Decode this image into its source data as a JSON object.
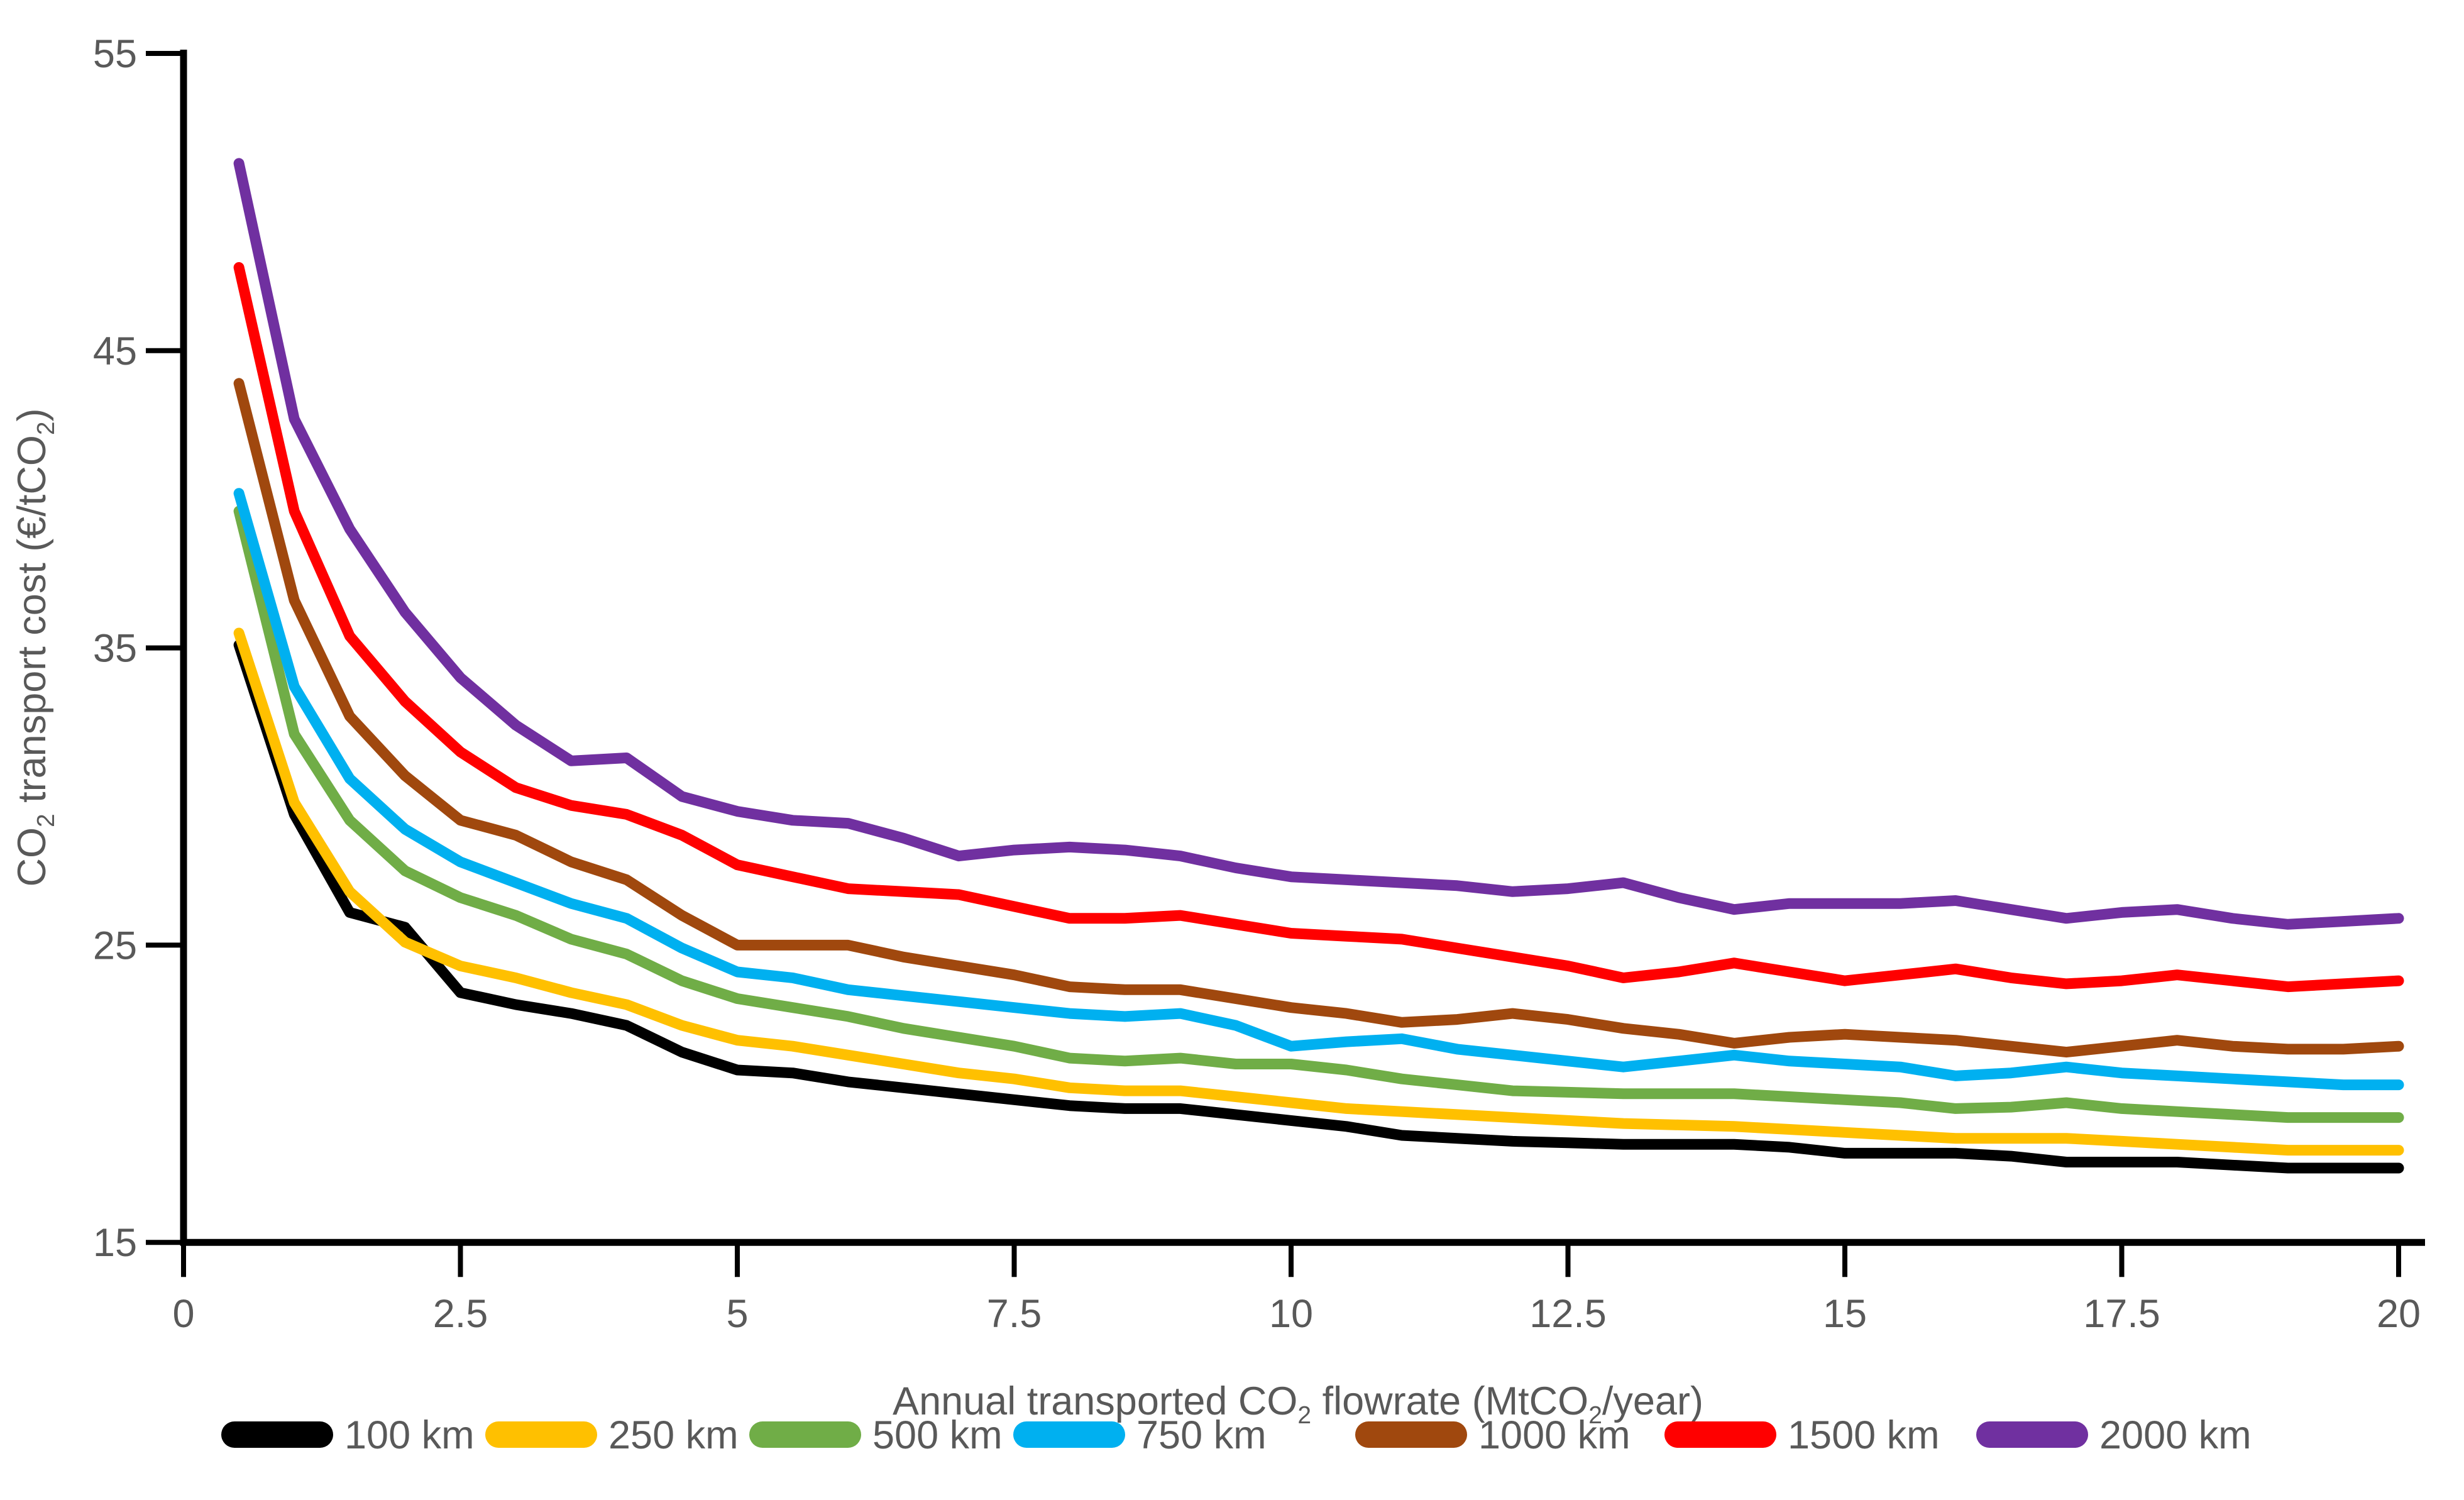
{
  "chart_data": {
    "type": "line",
    "title": "",
    "xlabel": "Annual transported CO₂ flowrate (MtCO₂/year)",
    "ylabel": "CO₂ transport cost (€/tCO₂)",
    "xlim": [
      0,
      20
    ],
    "ylim": [
      15,
      55
    ],
    "grid": false,
    "legend_position": "bottom",
    "x_ticks": [
      0,
      2.5,
      5,
      7.5,
      10,
      12.5,
      15,
      17.5,
      20
    ],
    "x_tick_labels": [
      "0",
      "2.5",
      "5",
      "7.5",
      "10",
      "12.5",
      "15",
      "17.5",
      "20"
    ],
    "y_ticks": [
      15,
      25,
      35,
      45,
      55
    ],
    "y_tick_labels": [
      "15",
      "25",
      "35",
      "45",
      "55"
    ],
    "x": [
      0.5,
      1,
      1.5,
      2,
      2.5,
      3,
      3.5,
      4,
      4.5,
      5,
      5.5,
      6,
      6.5,
      7,
      7.5,
      8,
      8.5,
      9,
      9.5,
      10,
      10.5,
      11,
      11.5,
      12,
      12.5,
      13,
      13.5,
      14,
      14.5,
      15,
      15.5,
      16,
      16.5,
      17,
      17.5,
      18,
      18.5,
      19,
      19.5,
      20
    ],
    "series": [
      {
        "name": "100 km",
        "color": "#000000",
        "values": [
          35.1,
          29.4,
          26.1,
          25.6,
          23.4,
          23.0,
          22.7,
          22.3,
          21.4,
          20.8,
          20.7,
          20.4,
          20.2,
          20.0,
          19.8,
          19.6,
          19.5,
          19.5,
          19.3,
          19.1,
          18.9,
          18.6,
          18.5,
          18.4,
          18.35,
          18.3,
          18.3,
          18.3,
          18.2,
          18.0,
          18.0,
          18.0,
          17.9,
          17.7,
          17.7,
          17.7,
          17.6,
          17.5,
          17.5,
          17.5
        ]
      },
      {
        "name": "250 km",
        "color": "#FFC000",
        "values": [
          35.5,
          29.8,
          26.8,
          25.1,
          24.3,
          23.9,
          23.4,
          23.0,
          22.3,
          21.8,
          21.6,
          21.3,
          21.0,
          20.7,
          20.5,
          20.2,
          20.1,
          20.1,
          19.9,
          19.7,
          19.5,
          19.4,
          19.3,
          19.2,
          19.1,
          19.0,
          18.95,
          18.9,
          18.8,
          18.7,
          18.6,
          18.5,
          18.5,
          18.5,
          18.4,
          18.3,
          18.2,
          18.1,
          18.1,
          18.1
        ]
      },
      {
        "name": "500 km",
        "color": "#70AD47",
        "values": [
          39.6,
          32.1,
          29.2,
          27.5,
          26.6,
          26.0,
          25.2,
          24.7,
          23.8,
          23.2,
          22.9,
          22.6,
          22.2,
          21.9,
          21.6,
          21.2,
          21.1,
          21.2,
          21.0,
          21.0,
          20.8,
          20.5,
          20.3,
          20.1,
          20.05,
          20.0,
          20.0,
          20.0,
          19.9,
          19.8,
          19.7,
          19.5,
          19.55,
          19.7,
          19.5,
          19.4,
          19.3,
          19.2,
          19.2,
          19.2
        ]
      },
      {
        "name": "750 km",
        "color": "#00B0F0",
        "values": [
          40.2,
          33.7,
          30.6,
          28.9,
          27.8,
          27.1,
          26.4,
          25.9,
          24.9,
          24.1,
          23.9,
          23.5,
          23.3,
          23.1,
          22.9,
          22.7,
          22.6,
          22.7,
          22.3,
          21.6,
          21.75,
          21.85,
          21.5,
          21.3,
          21.1,
          20.9,
          21.1,
          21.3,
          21.1,
          21.0,
          20.9,
          20.6,
          20.7,
          20.9,
          20.7,
          20.6,
          20.5,
          20.4,
          20.3,
          20.3
        ]
      },
      {
        "name": "1000 km",
        "color": "#A0480E",
        "values": [
          43.9,
          36.6,
          32.7,
          30.7,
          29.2,
          28.7,
          27.8,
          27.2,
          26.0,
          25.0,
          25.0,
          25.0,
          24.6,
          24.3,
          24.0,
          23.6,
          23.5,
          23.5,
          23.2,
          22.9,
          22.7,
          22.4,
          22.5,
          22.7,
          22.5,
          22.2,
          22.0,
          21.7,
          21.9,
          22.0,
          21.9,
          21.8,
          21.6,
          21.4,
          21.6,
          21.8,
          21.6,
          21.5,
          21.5,
          21.6
        ]
      },
      {
        "name": "1500 km",
        "color": "#FF0000",
        "values": [
          47.8,
          39.6,
          35.4,
          33.2,
          31.5,
          30.3,
          29.7,
          29.4,
          28.7,
          27.7,
          27.3,
          26.9,
          26.8,
          26.7,
          26.3,
          25.9,
          25.9,
          26.0,
          25.7,
          25.4,
          25.3,
          25.2,
          24.9,
          24.6,
          24.3,
          23.9,
          24.1,
          24.4,
          24.1,
          23.8,
          24.0,
          24.2,
          23.9,
          23.7,
          23.8,
          24.0,
          23.8,
          23.6,
          23.7,
          23.8
        ]
      },
      {
        "name": "2000 km",
        "color": "#7030A0",
        "values": [
          51.3,
          42.7,
          39.0,
          36.2,
          34.0,
          32.4,
          31.2,
          31.3,
          30.0,
          29.5,
          29.2,
          29.1,
          28.6,
          28.0,
          28.2,
          28.3,
          28.2,
          28.0,
          27.6,
          27.3,
          27.2,
          27.1,
          27.0,
          26.8,
          26.9,
          27.1,
          26.6,
          26.2,
          26.4,
          26.4,
          26.4,
          26.5,
          26.2,
          25.9,
          26.1,
          26.2,
          25.9,
          25.7,
          25.8,
          25.9
        ]
      }
    ]
  },
  "style": {
    "axis_color": "#000000",
    "text_color": "#595959",
    "background": "#ffffff"
  }
}
